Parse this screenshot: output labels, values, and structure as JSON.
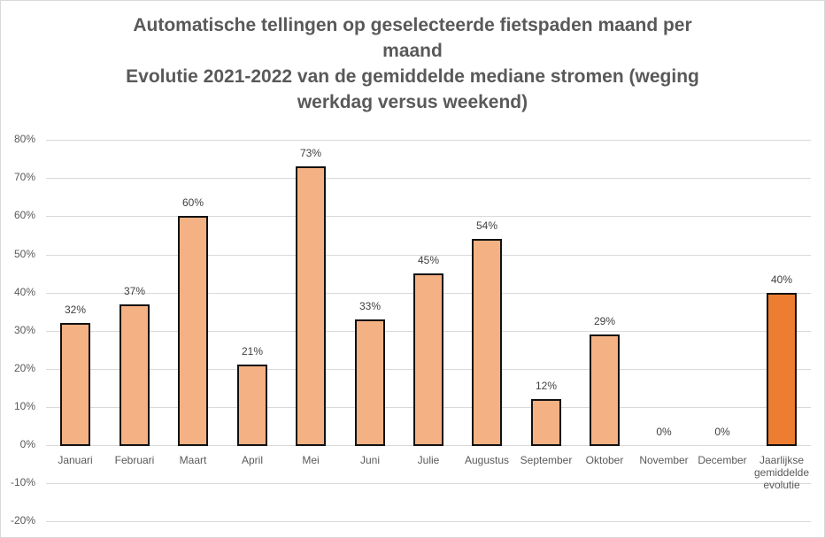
{
  "chart_data": {
    "type": "bar",
    "title_lines": [
      "Automatische tellingen op geselecteerde fietspaden maand per",
      "maand",
      "Evolutie 2021-2022 van de gemiddelde mediane stromen (weging",
      "werkdag versus weekend)"
    ],
    "title": "Automatische tellingen op geselecteerde fietspaden maand per maand Evolutie 2021-2022 van de gemiddelde mediane stromen (weging werkdag versus weekend)",
    "xlabel": "",
    "ylabel": "",
    "ylim": [
      -0.2,
      0.8
    ],
    "yticks": [
      "80%",
      "70%",
      "60%",
      "50%",
      "40%",
      "30%",
      "20%",
      "10%",
      "0%",
      "-10%",
      "-20%"
    ],
    "grid": true,
    "legend": null,
    "categories": [
      "Januari",
      "Februari",
      "Maart",
      "April",
      "Mei",
      "Juni",
      "Julie",
      "Augustus",
      "September",
      "Oktober",
      "November",
      "December",
      "Jaarlijkse gemiddelde evolutie"
    ],
    "category_lines": [
      [
        "Januari"
      ],
      [
        "Februari"
      ],
      [
        "Maart"
      ],
      [
        "April"
      ],
      [
        "Mei"
      ],
      [
        "Juni"
      ],
      [
        "Julie"
      ],
      [
        "Augustus"
      ],
      [
        "September"
      ],
      [
        "Oktober"
      ],
      [
        "November"
      ],
      [
        "December"
      ],
      [
        "Jaarlijkse",
        "gemiddelde",
        "evolutie"
      ]
    ],
    "values": [
      0.32,
      0.37,
      0.6,
      0.21,
      0.73,
      0.33,
      0.45,
      0.54,
      0.12,
      0.29,
      0.0,
      0.0,
      0.4
    ],
    "data_labels": [
      "32%",
      "37%",
      "60%",
      "21%",
      "73%",
      "33%",
      "45%",
      "54%",
      "12%",
      "29%",
      "0%",
      "0%",
      "40%"
    ],
    "colors": {
      "bar": "#f4b183",
      "highlight_bar": "#ed7d31",
      "bar_border": "#111111",
      "grid": "#d9d9d9",
      "text": "#595959"
    },
    "highlight_index": 12
  }
}
